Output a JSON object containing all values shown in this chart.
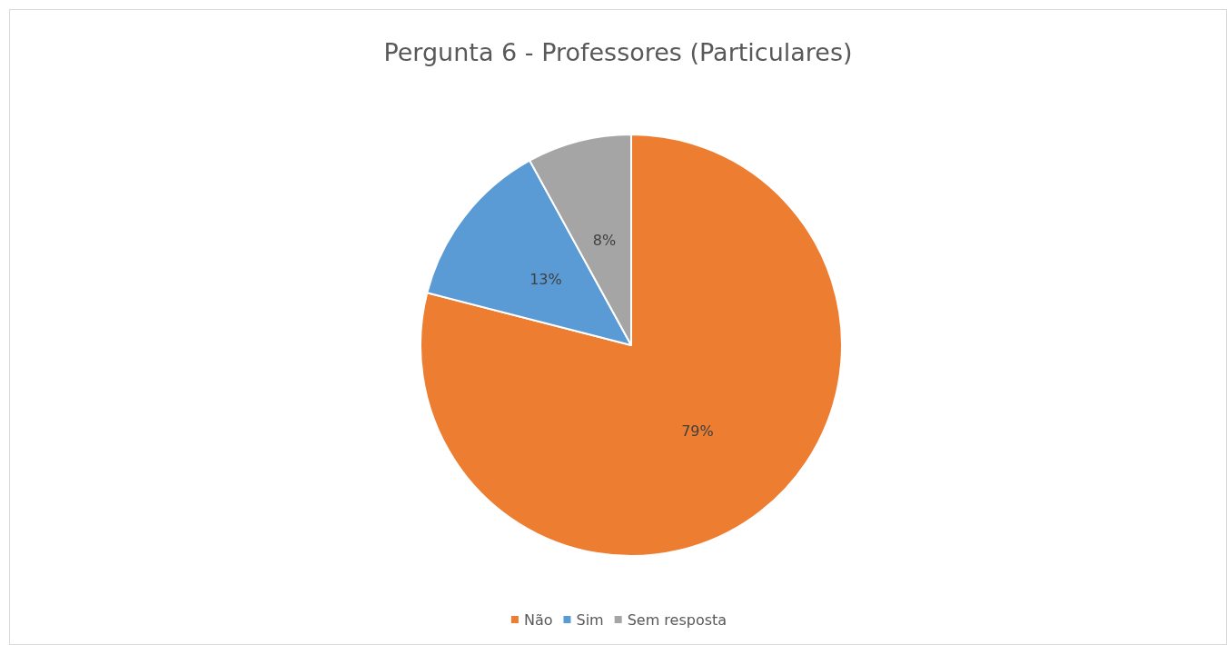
{
  "chart_data": {
    "type": "pie",
    "title": "Pergunta 6 - Professores (Particulares)",
    "categories": [
      "Não",
      "Sim",
      "Sem resposta"
    ],
    "values": [
      79,
      13,
      8
    ],
    "colors": [
      "#ed7d31",
      "#5b9bd5",
      "#a5a5a5"
    ],
    "value_labels": [
      "79%",
      "13%",
      "8%"
    ],
    "legend": "bottom"
  }
}
